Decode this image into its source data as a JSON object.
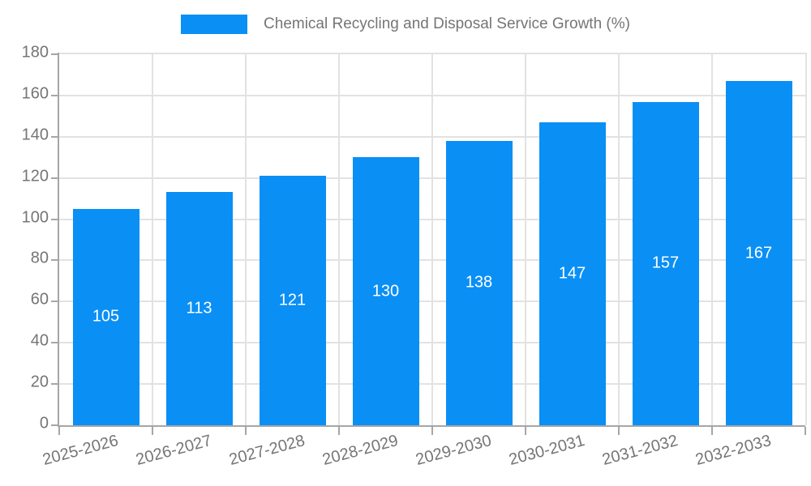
{
  "legend": {
    "label": "Chemical Recycling and Disposal Service Growth (%)"
  },
  "chart_data": {
    "type": "bar",
    "title": "Chemical Recycling and Disposal Service Growth (%)",
    "categories": [
      "2025-2026",
      "2026-2027",
      "2027-2028",
      "2028-2029",
      "2029-2030",
      "2030-2031",
      "2031-2032",
      "2032-2033"
    ],
    "values": [
      105,
      113,
      121,
      130,
      138,
      147,
      157,
      167
    ],
    "series": [
      {
        "name": "Chemical Recycling and Disposal Service Growth (%)",
        "values": [
          105,
          113,
          121,
          130,
          138,
          147,
          157,
          167
        ]
      }
    ],
    "xlabel": "",
    "ylabel": "",
    "ylim": [
      0,
      180
    ],
    "ytick_step": 20,
    "ytick_labels": [
      "0",
      "20",
      "40",
      "60",
      "80",
      "100",
      "120",
      "140",
      "160",
      "180"
    ],
    "grid": true,
    "legend_position": "top",
    "value_labels_shown_inside_bars": true
  },
  "colors": {
    "bar": "#0a8ff5",
    "grid": "#e2e2e2",
    "axis": "#a6a6a6",
    "tick_text": "#757575",
    "legend_text": "#757575",
    "bar_value_text": "#ffffff",
    "background": "#ffffff"
  }
}
